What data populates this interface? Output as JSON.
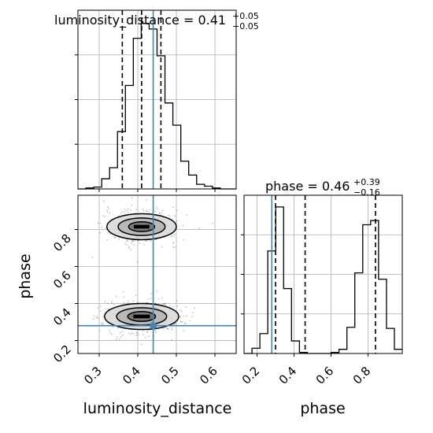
{
  "chart_data": {
    "type": "corner",
    "parameters": [
      "luminosity_distance",
      "phase"
    ],
    "titles": [
      {
        "param": "luminosity_distance",
        "median": "0.41",
        "plus": "+0.05",
        "minus": "−0.05"
      },
      {
        "param": "phase",
        "median": "0.46",
        "plus": "+0.39",
        "minus": "−0.16"
      }
    ],
    "axis_labels": {
      "x": [
        "luminosity_distance",
        "phase"
      ],
      "y": [
        "phase"
      ]
    },
    "ranges": {
      "luminosity_distance": [
        0.245,
        0.655
      ],
      "phase": [
        0.13,
        0.985
      ]
    },
    "ticks": {
      "luminosity_distance": {
        "values": [
          0.3,
          0.4,
          0.5,
          0.6
        ],
        "labels": [
          "0.3",
          "0.4",
          "0.5",
          "0.6"
        ]
      },
      "phase": {
        "values": [
          0.2,
          0.4,
          0.6,
          0.8
        ],
        "labels": [
          "0.2",
          "0.4",
          "0.6",
          "0.8"
        ]
      }
    },
    "grid": true,
    "truth": {
      "luminosity_distance": 0.44,
      "phase": 0.28,
      "color": "#4682b4"
    },
    "histograms": {
      "luminosity_distance": {
        "quantiles": [
          0.36,
          0.41,
          0.46
        ],
        "edges": [
          0.245,
          0.2655,
          0.286,
          0.3065,
          0.327,
          0.3475,
          0.368,
          0.3885,
          0.409,
          0.4295,
          0.45,
          0.4705,
          0.491,
          0.5115,
          0.532,
          0.5525,
          0.573,
          0.5935,
          0.614,
          0.6345,
          0.655
        ],
        "counts": [
          0,
          1,
          2,
          11,
          23,
          62,
          112,
          163,
          179,
          173,
          144,
          93,
          69,
          30,
          15,
          5,
          3,
          1,
          0,
          0
        ]
      },
      "phase": {
        "quantiles": [
          0.3,
          0.46,
          0.84
        ],
        "edges": [
          0.13,
          0.1728,
          0.2155,
          0.2583,
          0.301,
          0.3438,
          0.3865,
          0.4293,
          0.472,
          0.5148,
          0.5575,
          0.6003,
          0.643,
          0.6858,
          0.7285,
          0.7713,
          0.814,
          0.8568,
          0.8995,
          0.9423,
          0.985
        ],
        "counts": [
          0,
          5,
          19,
          98,
          140,
          62,
          12,
          1,
          0,
          0,
          0,
          1,
          4,
          25,
          77,
          123,
          127,
          71,
          24,
          4
        ]
      }
    },
    "density_2d": {
      "x_param": "luminosity_distance",
      "y_param": "phase",
      "modes": [
        {
          "x": 0.41,
          "y": 0.815,
          "sx": 0.045,
          "sy": 0.045,
          "weight": 0.45
        },
        {
          "x": 0.41,
          "y": 0.33,
          "sx": 0.048,
          "sy": 0.045,
          "weight": 0.55
        }
      ],
      "contour_levels": 3
    }
  }
}
